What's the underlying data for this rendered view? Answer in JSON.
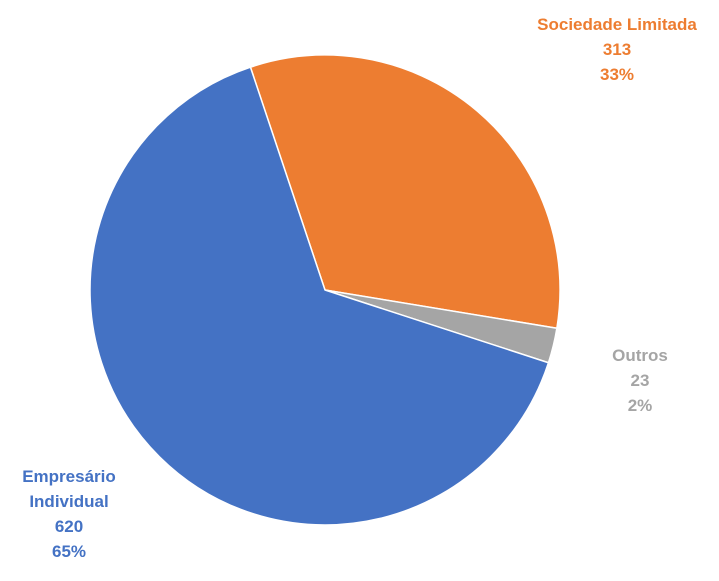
{
  "chart_data": {
    "type": "pie",
    "title": "",
    "slices": [
      {
        "label": "Sociedade Limitada",
        "value": 313,
        "percent_label": "33%",
        "color": "#ED7D31",
        "label_lines": [
          "Sociedade Limitada",
          "313",
          "33%"
        ]
      },
      {
        "label": "Outros",
        "value": 23,
        "percent_label": "2%",
        "color": "#A5A5A5",
        "label_lines": [
          "Outros",
          "23",
          "2%"
        ]
      },
      {
        "label": "Empresário Individual",
        "value": 620,
        "percent_label": "65%",
        "color": "#4472C4",
        "label_lines": [
          "Empresário",
          "Individual",
          "620",
          "65%"
        ]
      }
    ],
    "start_angle_deg": -18.5,
    "direction": "clockwise",
    "legend": "none"
  }
}
